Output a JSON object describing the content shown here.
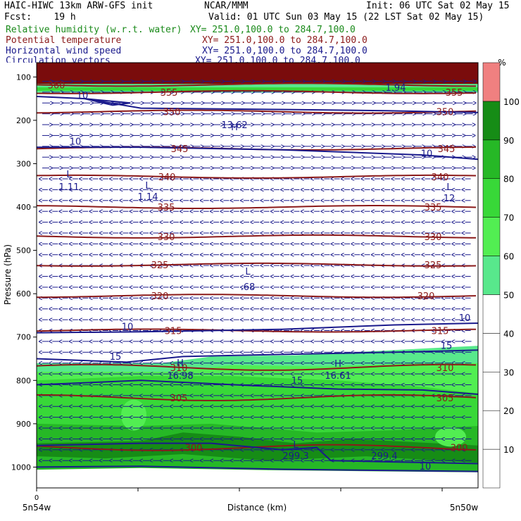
{
  "header": {
    "line1_left": "HAIC-HIWC 13km ARW-GFS init",
    "line1_center": "NCAR/MMM",
    "line1_right": "Init: 06 UTC Sat 02 May 15",
    "fcst": "Fcst:    19 h",
    "valid": "Valid: 01 UTC Sun 03 May 15 (22 LST Sat 02 May 15)"
  },
  "legend": [
    {
      "label": "Relative humidity (w.r.t. water)",
      "xy": "XY= 251.0,100.0 to 284.7,100.0",
      "color": "#1a8a1a"
    },
    {
      "label": "Potential temperature",
      "xy": "XY= 251.0,100.0 to 284.7,100.0",
      "color": "#8b1a1a"
    },
    {
      "label": "Horizontal wind speed",
      "xy": "XY= 251.0,100.0 to 284.7,100.0",
      "color": "#1a1a8c"
    },
    {
      "label": "Circulation vectors",
      "xy": "XY= 251.0,100.0 to 284.7,100.0",
      "color": "#1a1a8c"
    }
  ],
  "colorbar": {
    "unit": "%",
    "ticks": [
      "10",
      "20",
      "30",
      "40",
      "50",
      "60",
      "70",
      "80",
      "90",
      "100"
    ],
    "colors": [
      "#ffffff",
      "#ffffff",
      "#ffffff",
      "#ffffff",
      "#58e88c",
      "#52ee52",
      "#38d838",
      "#26b826",
      "#168c16",
      "#f08080"
    ]
  },
  "chart_data": {
    "type": "heatmap",
    "title": "",
    "xlabel": "Distance (km)",
    "ylabel": "Pressure (hPa)",
    "x_start_label": "5n54w",
    "x_end_label": "5n50w",
    "x_zero_label": "0",
    "y_ticks": [
      100,
      200,
      300,
      400,
      500,
      600,
      700,
      800,
      900,
      1000
    ],
    "theta_contours": [
      {
        "value": 360,
        "p": 118,
        "labels": [
          "360"
        ]
      },
      {
        "value": 355,
        "p": 135,
        "labels": [
          "355",
          "355"
        ]
      },
      {
        "value": 350,
        "p": 180,
        "labels": [
          "350",
          "350"
        ]
      },
      {
        "value": 345,
        "p": 265,
        "labels": [
          "345",
          "345"
        ]
      },
      {
        "value": 340,
        "p": 330,
        "labels": [
          "340",
          "340"
        ]
      },
      {
        "value": 335,
        "p": 400,
        "labels": [
          "335",
          "335"
        ]
      },
      {
        "value": 330,
        "p": 468,
        "labels": [
          "330",
          "330"
        ]
      },
      {
        "value": 325,
        "p": 533,
        "labels": [
          "325",
          "325"
        ]
      },
      {
        "value": 320,
        "p": 605,
        "labels": [
          "320",
          "320"
        ]
      },
      {
        "value": 315,
        "p": 685,
        "labels": [
          "315",
          "315"
        ]
      },
      {
        "value": 310,
        "p": 770,
        "labels": [
          "310",
          "310"
        ]
      },
      {
        "value": 305,
        "p": 840,
        "labels": [
          "305",
          "305"
        ]
      },
      {
        "value": 300,
        "p": 955,
        "labels": [
          "300",
          "300"
        ]
      }
    ],
    "wind_contours": [
      {
        "value": 10,
        "labels": [
          "10",
          "10",
          "10",
          "10",
          "10"
        ]
      },
      {
        "value": 15,
        "labels": [
          "15",
          "15",
          "15"
        ]
      }
    ],
    "extrema": [
      {
        "mark": "H",
        "value": "13.62"
      },
      {
        "mark": "L",
        "value": "1.11"
      },
      {
        "mark": "L",
        "value": "1.14"
      },
      {
        "mark": "L",
        "value": "12"
      },
      {
        "mark": "L",
        "value": ".68"
      },
      {
        "mark": "H",
        "value": "16.98"
      },
      {
        "mark": "H",
        "value": "16.61"
      },
      {
        "mark": "L",
        "value": "299.3"
      },
      {
        "mark": "",
        "value": "299.4"
      },
      {
        "mark": "",
        "value": "1.94"
      }
    ]
  }
}
